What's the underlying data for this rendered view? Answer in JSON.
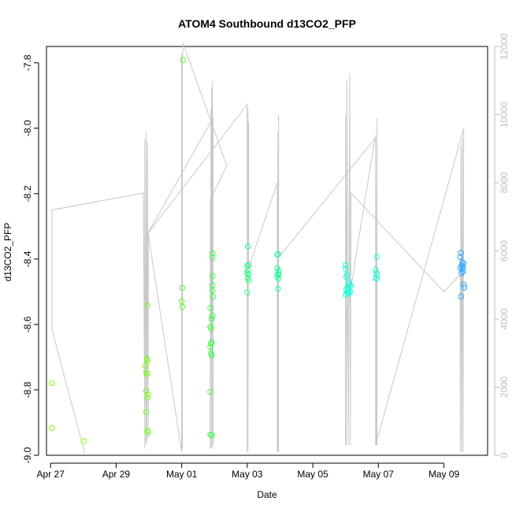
{
  "chart_data": {
    "type": "scatter",
    "title": "ATOM4 Southbound d13CO2_PFP",
    "xlabel": "Date",
    "ylabel": "d13CO2_PFP",
    "x_type": "date",
    "xlim": [
      "2016-04-26T21:00",
      "2016-05-10T08:00"
    ],
    "ylim": [
      -9.0,
      -7.75
    ],
    "y_ticks": [
      -9.0,
      -8.8,
      -8.6,
      -8.4,
      -8.2,
      -8.0,
      -7.8
    ],
    "y_tick_labels": [
      "-9.0",
      "-8.8",
      "-8.6",
      "-8.4",
      "-8.2",
      "-8.0",
      "-7.8"
    ],
    "x_ticks": [
      "2016-04-27",
      "2016-04-29",
      "2016-05-01",
      "2016-05-03",
      "2016-05-05",
      "2016-05-07",
      "2016-05-09"
    ],
    "x_tick_labels": [
      "Apr 27",
      "Apr 29",
      "May 01",
      "May 03",
      "May 05",
      "May 07",
      "May 09"
    ],
    "y2lim": [
      0,
      12000
    ],
    "y2_ticks": [
      0,
      2000,
      4000,
      6000,
      8000,
      10000,
      12000
    ],
    "y2_tick_labels": [
      "0",
      "2000",
      "4000",
      "6000",
      "8000",
      "10000",
      "12000"
    ],
    "grid": false,
    "colors": {
      "altitude_line": "#c8c8c8",
      "axis": "#000000",
      "right_axis": "#bdbdbd",
      "marker_palette": [
        "#7fff00",
        "#00ff7f",
        "#00ffff",
        "#1e90ff"
      ]
    },
    "series": [
      {
        "marker": "open-circle",
        "color": "#84ff10",
        "points": [
          [
            "2016-04-27T01:00",
            -8.779
          ],
          [
            "2016-04-27T01:00",
            -8.917
          ],
          [
            "2016-04-28T00:30",
            -8.957
          ]
        ]
      },
      {
        "marker": "open-circle",
        "color": "#76ff10",
        "points": [
          [
            "2016-04-29T21:30",
            -8.726
          ],
          [
            "2016-04-29T22:00",
            -8.748
          ],
          [
            "2016-04-29T22:30",
            -8.705
          ],
          [
            "2016-04-29T23:00",
            -8.71
          ],
          [
            "2016-04-29T23:00",
            -8.751
          ],
          [
            "2016-04-29T22:00",
            -8.803
          ],
          [
            "2016-04-29T23:30",
            -8.814
          ],
          [
            "2016-04-29T23:00",
            -8.824
          ],
          [
            "2016-04-29T22:00",
            -8.867
          ],
          [
            "2016-04-29T23:00",
            -8.925
          ],
          [
            "2016-04-29T23:30",
            -8.93
          ],
          [
            "2016-04-29T23:00",
            -8.542
          ]
        ]
      },
      {
        "marker": "open-circle",
        "color": "#50ff30",
        "points": [
          [
            "2016-05-01T00:30",
            -8.488
          ],
          [
            "2016-05-01T00:00",
            -8.529
          ],
          [
            "2016-05-01T00:30",
            -8.546
          ],
          [
            "2016-05-01T01:00",
            -7.791
          ]
        ]
      },
      {
        "marker": "open-circle",
        "color": "#38ff40",
        "points": [
          [
            "2016-05-01T21:00",
            -8.55
          ],
          [
            "2016-05-01T21:00",
            -8.607
          ],
          [
            "2016-05-01T21:30",
            -8.613
          ],
          [
            "2016-05-01T22:00",
            -8.582
          ],
          [
            "2016-05-01T21:30",
            -8.658
          ],
          [
            "2016-05-01T21:00",
            -8.668
          ],
          [
            "2016-05-01T22:00",
            -8.655
          ],
          [
            "2016-05-01T21:30",
            -8.688
          ],
          [
            "2016-05-01T22:00",
            -8.694
          ],
          [
            "2016-05-01T21:00",
            -8.806
          ],
          [
            "2016-05-01T22:00",
            -8.939
          ],
          [
            "2016-05-01T22:30",
            -8.573
          ],
          [
            "2016-05-01T23:00",
            -8.515
          ],
          [
            "2016-05-01T22:30",
            -8.496
          ],
          [
            "2016-05-01T22:30",
            -8.48
          ],
          [
            "2016-05-01T22:30",
            -8.451
          ],
          [
            "2016-05-01T22:30",
            -8.396
          ],
          [
            "2016-05-01T22:30",
            -8.383
          ],
          [
            "2016-05-01T21:00",
            -8.937
          ]
        ]
      },
      {
        "marker": "open-circle",
        "color": "#20ff80",
        "points": [
          [
            "2016-05-03T00:00",
            -8.421
          ],
          [
            "2016-05-03T00:30",
            -8.434
          ],
          [
            "2016-05-03T00:00",
            -8.443
          ],
          [
            "2016-05-03T01:00",
            -8.447
          ],
          [
            "2016-05-03T00:30",
            -8.458
          ],
          [
            "2016-05-03T01:00",
            -8.466
          ],
          [
            "2016-05-03T00:00",
            -8.502
          ],
          [
            "2016-05-03T00:30",
            -8.361
          ],
          [
            "2016-05-03T01:00",
            -8.418
          ]
        ]
      },
      {
        "marker": "open-circle",
        "color": "#18ff98",
        "points": [
          [
            "2016-05-03T22:30",
            -8.385
          ],
          [
            "2016-05-03T22:00",
            -8.386
          ],
          [
            "2016-05-03T22:00",
            -8.428
          ],
          [
            "2016-05-03T23:00",
            -8.436
          ],
          [
            "2016-05-03T22:30",
            -8.445
          ],
          [
            "2016-05-03T22:00",
            -8.454
          ],
          [
            "2016-05-03T23:00",
            -8.46
          ],
          [
            "2016-05-03T22:30",
            -8.491
          ],
          [
            "2016-05-03T23:00",
            -8.447
          ]
        ]
      },
      {
        "marker": "open-circle",
        "color": "#10ffdf",
        "points": [
          [
            "2016-05-06T00:00",
            -8.418
          ],
          [
            "2016-05-06T00:00",
            -8.43
          ],
          [
            "2016-05-06T01:00",
            -8.448
          ],
          [
            "2016-05-06T00:30",
            -8.455
          ],
          [
            "2016-05-06T02:30",
            -8.471
          ],
          [
            "2016-05-06T03:00",
            -8.478
          ],
          [
            "2016-05-06T04:00",
            -8.482
          ],
          [
            "2016-05-06T01:30",
            -8.487
          ],
          [
            "2016-05-06T00:30",
            -8.493
          ],
          [
            "2016-05-06T02:00",
            -8.496
          ],
          [
            "2016-05-06T03:30",
            -8.5
          ],
          [
            "2016-05-06T01:00",
            -8.502
          ],
          [
            "2016-05-06T02:30",
            -8.505
          ],
          [
            "2016-05-06T00:00",
            -8.51
          ]
        ]
      },
      {
        "marker": "open-circle",
        "color": "#20ffd0",
        "points": [
          [
            "2016-05-06T22:00",
            -8.433
          ],
          [
            "2016-05-06T22:30",
            -8.442
          ],
          [
            "2016-05-06T23:00",
            -8.447
          ],
          [
            "2016-05-06T22:00",
            -8.458
          ],
          [
            "2016-05-06T23:00",
            -8.46
          ],
          [
            "2016-05-06T23:00",
            -8.393
          ]
        ]
      },
      {
        "marker": "open-circle",
        "color": "#2aa6ff",
        "points": [
          [
            "2016-05-09T12:30",
            -8.381
          ],
          [
            "2016-05-09T12:00",
            -8.394
          ],
          [
            "2016-05-09T13:30",
            -8.41
          ],
          [
            "2016-05-09T14:30",
            -8.413
          ],
          [
            "2016-05-09T13:00",
            -8.42
          ],
          [
            "2016-05-09T14:00",
            -8.424
          ],
          [
            "2016-05-09T12:00",
            -8.427
          ],
          [
            "2016-05-09T13:30",
            -8.431
          ],
          [
            "2016-05-09T14:00",
            -8.438
          ],
          [
            "2016-05-09T13:00",
            -8.443
          ],
          [
            "2016-05-09T14:30",
            -8.478
          ],
          [
            "2016-05-09T15:00",
            -8.487
          ],
          [
            "2016-05-09T12:30",
            -8.515
          ]
        ]
      }
    ],
    "altitude_line": {
      "axis": "right",
      "points": [
        [
          "2016-04-27T01:00",
          7200
        ],
        [
          "2016-04-27T01:00",
          3700
        ],
        [
          "2016-04-28T01:00",
          60
        ],
        [
          "2016-04-27T01:00",
          3700
        ],
        [
          "2016-04-27T01:00",
          7200
        ],
        [
          "2016-04-29T20:00",
          7700
        ],
        [
          "2016-04-29T21:00",
          200
        ],
        [
          "2016-04-29T21:00",
          9300
        ],
        [
          "2016-04-29T22:00",
          300
        ],
        [
          "2016-04-29T22:00",
          9500
        ],
        [
          "2016-04-29T22:30",
          400
        ],
        [
          "2016-04-29T23:00",
          9200
        ],
        [
          "2016-04-29T23:30",
          500
        ],
        [
          "2016-04-29T23:30",
          6500
        ],
        [
          "2016-05-01T00:00",
          100
        ],
        [
          "2016-05-01T00:00",
          11800
        ],
        [
          "2016-05-01T00:30",
          200
        ],
        [
          "2016-05-01T00:30",
          11300
        ],
        [
          "2016-05-01T01:00",
          12100
        ],
        [
          "2016-05-02T09:00",
          8500
        ],
        [
          "2016-05-01T21:00",
          7500
        ],
        [
          "2016-05-01T21:00",
          200
        ],
        [
          "2016-05-01T21:30",
          10200
        ],
        [
          "2016-05-01T21:30",
          200
        ],
        [
          "2016-05-01T22:00",
          10800
        ],
        [
          "2016-05-01T22:30",
          200
        ],
        [
          "2016-05-01T22:30",
          11000
        ],
        [
          "2016-05-01T23:00",
          300
        ],
        [
          "2016-05-01T23:00",
          9900
        ],
        [
          "2016-04-29T23:00",
          6500
        ],
        [
          "2016-05-03T00:00",
          10300
        ],
        [
          "2016-05-03T00:00",
          100
        ],
        [
          "2016-05-03T00:30",
          10200
        ],
        [
          "2016-05-03T00:30",
          100
        ],
        [
          "2016-05-03T01:00",
          9800
        ],
        [
          "2016-05-03T01:00",
          5500
        ],
        [
          "2016-05-03T22:00",
          8000
        ],
        [
          "2016-05-03T22:00",
          100
        ],
        [
          "2016-05-03T22:30",
          9500
        ],
        [
          "2016-05-03T22:30",
          100
        ],
        [
          "2016-05-03T23:00",
          10000
        ],
        [
          "2016-05-03T23:00",
          100
        ],
        [
          "2016-05-03T23:00",
          5800
        ],
        [
          "2016-05-06T21:30",
          9300
        ],
        [
          "2016-05-06T01:00",
          4200
        ],
        [
          "2016-05-06T00:00",
          300
        ],
        [
          "2016-05-06T00:00",
          10000
        ],
        [
          "2016-05-06T00:30",
          300
        ],
        [
          "2016-05-06T01:00",
          11000
        ],
        [
          "2016-05-06T02:00",
          300
        ],
        [
          "2016-05-06T03:00",
          11200
        ],
        [
          "2016-05-06T03:30",
          300
        ],
        [
          "2016-05-06T04:00",
          7700
        ],
        [
          "2016-05-09T00:00",
          4800
        ],
        [
          "2016-05-09T12:00",
          5300
        ],
        [
          "2016-05-09T12:00",
          100
        ],
        [
          "2016-05-09T12:30",
          9100
        ],
        [
          "2016-05-09T13:00",
          100
        ],
        [
          "2016-05-09T13:30",
          9300
        ],
        [
          "2016-05-09T14:00",
          100
        ],
        [
          "2016-05-09T14:30",
          9600
        ],
        [
          "2016-05-06T22:00",
          300
        ],
        [
          "2016-05-06T22:00",
          9400
        ],
        [
          "2016-05-06T22:30",
          300
        ],
        [
          "2016-05-06T23:00",
          9900
        ],
        [
          "2016-05-06T23:00",
          300
        ],
        [
          "2016-05-06T23:00",
          8500
        ]
      ]
    }
  }
}
